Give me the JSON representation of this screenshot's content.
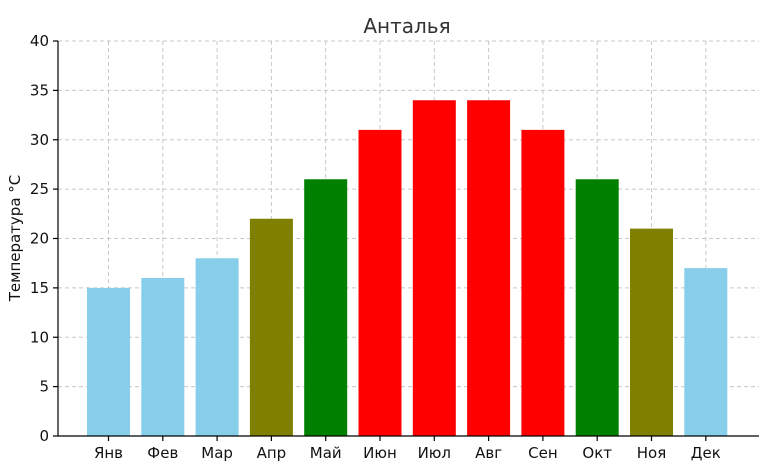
{
  "chart_data": {
    "type": "bar",
    "title": "Анталья",
    "xlabel": "",
    "ylabel": "Температура °C",
    "ylim": [
      0,
      40
    ],
    "yticks": [
      0,
      5,
      10,
      15,
      20,
      25,
      30,
      35,
      40
    ],
    "grid": true,
    "categories": [
      "Янв",
      "Фев",
      "Мар",
      "Апр",
      "Май",
      "Июн",
      "Июл",
      "Авг",
      "Сен",
      "Окт",
      "Ноя",
      "Дек"
    ],
    "values": [
      15,
      16,
      18,
      22,
      26,
      31,
      34,
      34,
      31,
      26,
      21,
      17
    ],
    "colors": [
      "#87ceeb",
      "#87ceeb",
      "#87ceeb",
      "#808000",
      "#008000",
      "#ff0000",
      "#ff0000",
      "#ff0000",
      "#ff0000",
      "#008000",
      "#808000",
      "#87ceeb"
    ]
  }
}
